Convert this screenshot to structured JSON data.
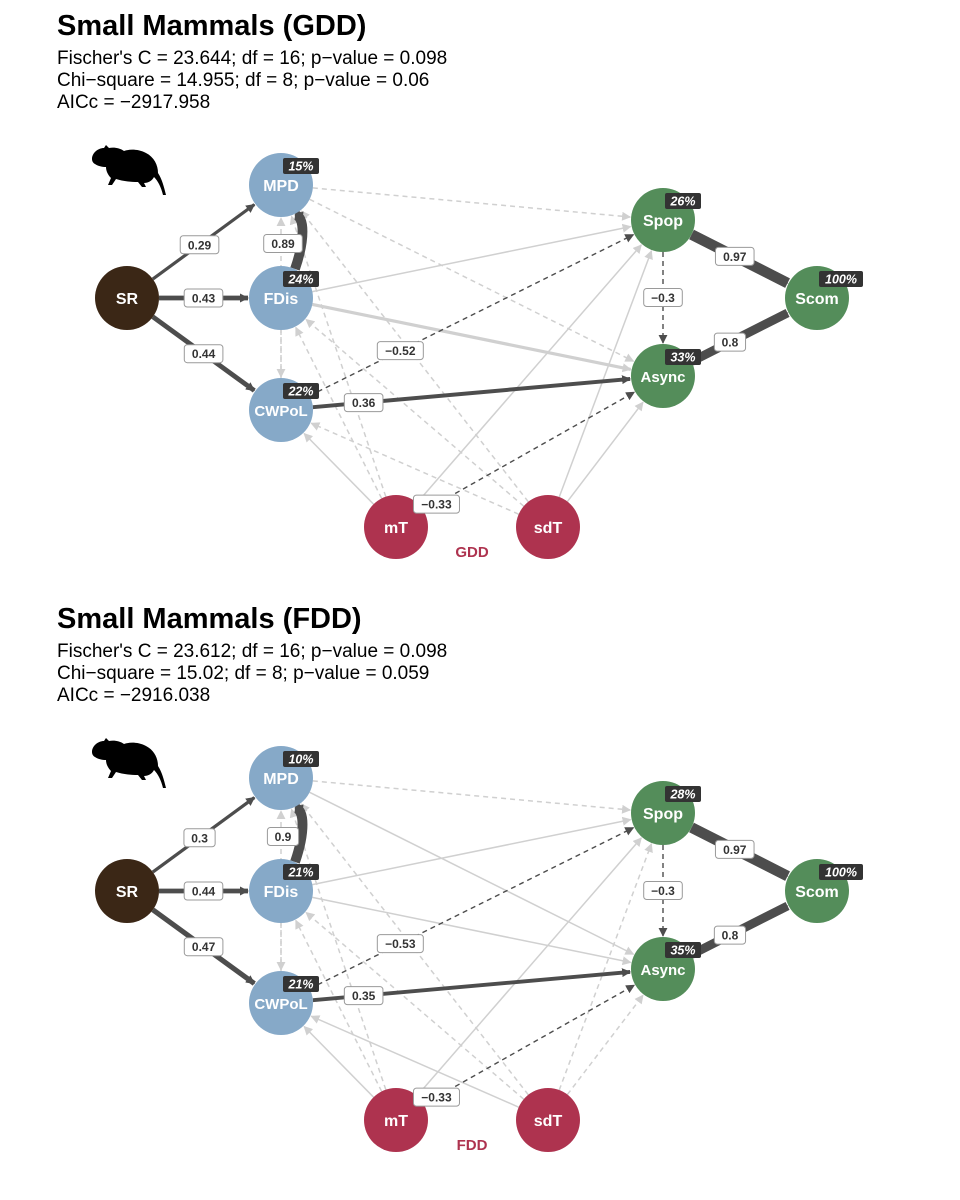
{
  "colors": {
    "predictor": "#3b2716",
    "mediator": "#86a9c8",
    "response": "#548d5a",
    "climate": "#ae334f",
    "strong_path": "#4d4d4d",
    "weak_path": "#d0d0d0"
  },
  "icon": "rat-silhouette-icon",
  "panels": [
    {
      "title": "Small Mammals (GDD)",
      "stats": [
        "Fischer's C = 23.644; df = 16; p−value = 0.098",
        "Chi−square = 14.955; df = 8; p−value = 0.06",
        "AICc = −2917.958"
      ],
      "climate_label": "GDD",
      "nodes": [
        {
          "id": "SR",
          "label": "SR",
          "group": "predictor"
        },
        {
          "id": "MPD",
          "label": "MPD",
          "group": "mediator",
          "r2": "15%"
        },
        {
          "id": "FDis",
          "label": "FDis",
          "group": "mediator",
          "r2": "24%"
        },
        {
          "id": "CWPoL",
          "label": "CWPoL",
          "group": "mediator",
          "r2": "22%"
        },
        {
          "id": "Spop",
          "label": "Spop",
          "group": "response",
          "r2": "26%"
        },
        {
          "id": "Async",
          "label": "Async",
          "group": "response",
          "r2": "33%"
        },
        {
          "id": "Scom",
          "label": "Scom",
          "group": "response",
          "r2": "100%"
        },
        {
          "id": "mT",
          "label": "mT",
          "group": "climate"
        },
        {
          "id": "sdT",
          "label": "sdT",
          "group": "climate"
        }
      ],
      "edges": [
        {
          "from": "SR",
          "to": "MPD",
          "coef": "0.29",
          "sig": true,
          "dashed": false
        },
        {
          "from": "SR",
          "to": "FDis",
          "coef": "0.43",
          "sig": true,
          "dashed": false
        },
        {
          "from": "SR",
          "to": "CWPoL",
          "coef": "0.44",
          "sig": true,
          "dashed": false
        },
        {
          "from": "FDis",
          "to": "MPD",
          "coef": "0.89",
          "sig": true,
          "dashed": false
        },
        {
          "from": "Spop",
          "to": "Scom",
          "coef": "0.97",
          "sig": true,
          "dashed": false
        },
        {
          "from": "Async",
          "to": "Scom",
          "coef": "0.8",
          "sig": true,
          "dashed": false
        },
        {
          "from": "Spop",
          "to": "Async",
          "coef": "−0.3",
          "sig": true,
          "dashed": true
        },
        {
          "from": "CWPoL",
          "to": "Async",
          "coef": "0.36",
          "sig": true,
          "dashed": false
        },
        {
          "from": "CWPoL",
          "to": "Spop",
          "coef": "−0.52",
          "sig": true,
          "dashed": true
        },
        {
          "from": "mT",
          "to": "Async",
          "coef": "−0.33",
          "sig": true,
          "dashed": true
        },
        {
          "from": "FDis",
          "to": "Async",
          "sig": false,
          "dashed": false,
          "thick": true
        },
        {
          "from": "FDis",
          "to": "Spop",
          "sig": false,
          "dashed": false
        },
        {
          "from": "MPD",
          "to": "Spop",
          "sig": false,
          "dashed": true
        },
        {
          "from": "MPD",
          "to": "Async",
          "sig": false,
          "dashed": true
        },
        {
          "from": "mT",
          "to": "Spop",
          "sig": false,
          "dashed": false
        },
        {
          "from": "sdT",
          "to": "Spop",
          "sig": false,
          "dashed": false
        },
        {
          "from": "sdT",
          "to": "Async",
          "sig": false,
          "dashed": false
        },
        {
          "from": "mT",
          "to": "CWPoL",
          "sig": false,
          "dashed": false
        },
        {
          "from": "mT",
          "to": "MPD",
          "sig": false,
          "dashed": true
        },
        {
          "from": "mT",
          "to": "FDis",
          "sig": false,
          "dashed": true
        },
        {
          "from": "sdT",
          "to": "MPD",
          "sig": false,
          "dashed": true
        },
        {
          "from": "sdT",
          "to": "FDis",
          "sig": false,
          "dashed": true
        },
        {
          "from": "sdT",
          "to": "CWPoL",
          "sig": false,
          "dashed": true
        },
        {
          "from": "CWPoL",
          "to": "MPD",
          "sig": false,
          "dashed": true
        },
        {
          "from": "FDis",
          "to": "CWPoL",
          "sig": false,
          "dashed": true
        }
      ]
    },
    {
      "title": "Small Mammals (FDD)",
      "stats": [
        "Fischer's C = 23.612; df = 16; p−value = 0.098",
        "Chi−square = 15.02; df = 8; p−value = 0.059",
        "AICc = −2916.038"
      ],
      "climate_label": "FDD",
      "nodes": [
        {
          "id": "SR",
          "label": "SR",
          "group": "predictor"
        },
        {
          "id": "MPD",
          "label": "MPD",
          "group": "mediator",
          "r2": "10%"
        },
        {
          "id": "FDis",
          "label": "FDis",
          "group": "mediator",
          "r2": "21%"
        },
        {
          "id": "CWPoL",
          "label": "CWPoL",
          "group": "mediator",
          "r2": "21%"
        },
        {
          "id": "Spop",
          "label": "Spop",
          "group": "response",
          "r2": "28%"
        },
        {
          "id": "Async",
          "label": "Async",
          "group": "response",
          "r2": "35%"
        },
        {
          "id": "Scom",
          "label": "Scom",
          "group": "response",
          "r2": "100%"
        },
        {
          "id": "mT",
          "label": "mT",
          "group": "climate"
        },
        {
          "id": "sdT",
          "label": "sdT",
          "group": "climate"
        }
      ],
      "edges": [
        {
          "from": "SR",
          "to": "MPD",
          "coef": "0.3",
          "sig": true,
          "dashed": false
        },
        {
          "from": "SR",
          "to": "FDis",
          "coef": "0.44",
          "sig": true,
          "dashed": false
        },
        {
          "from": "SR",
          "to": "CWPoL",
          "coef": "0.47",
          "sig": true,
          "dashed": false
        },
        {
          "from": "FDis",
          "to": "MPD",
          "coef": "0.9",
          "sig": true,
          "dashed": false
        },
        {
          "from": "Spop",
          "to": "Scom",
          "coef": "0.97",
          "sig": true,
          "dashed": false
        },
        {
          "from": "Async",
          "to": "Scom",
          "coef": "0.8",
          "sig": true,
          "dashed": false
        },
        {
          "from": "Spop",
          "to": "Async",
          "coef": "−0.3",
          "sig": true,
          "dashed": true
        },
        {
          "from": "CWPoL",
          "to": "Async",
          "coef": "0.35",
          "sig": true,
          "dashed": false
        },
        {
          "from": "CWPoL",
          "to": "Spop",
          "coef": "−0.53",
          "sig": true,
          "dashed": true
        },
        {
          "from": "mT",
          "to": "Async",
          "coef": "−0.33",
          "sig": true,
          "dashed": true
        },
        {
          "from": "FDis",
          "to": "Async",
          "sig": false,
          "dashed": false
        },
        {
          "from": "FDis",
          "to": "Spop",
          "sig": false,
          "dashed": false
        },
        {
          "from": "MPD",
          "to": "Spop",
          "sig": false,
          "dashed": true
        },
        {
          "from": "MPD",
          "to": "Async",
          "sig": false,
          "dashed": false
        },
        {
          "from": "mT",
          "to": "Spop",
          "sig": false,
          "dashed": false
        },
        {
          "from": "sdT",
          "to": "Spop",
          "sig": false,
          "dashed": true
        },
        {
          "from": "sdT",
          "to": "Async",
          "sig": false,
          "dashed": true
        },
        {
          "from": "mT",
          "to": "CWPoL",
          "sig": false,
          "dashed": false
        },
        {
          "from": "mT",
          "to": "MPD",
          "sig": false,
          "dashed": true
        },
        {
          "from": "mT",
          "to": "FDis",
          "sig": false,
          "dashed": true
        },
        {
          "from": "sdT",
          "to": "MPD",
          "sig": false,
          "dashed": true
        },
        {
          "from": "sdT",
          "to": "FDis",
          "sig": false,
          "dashed": true
        },
        {
          "from": "sdT",
          "to": "CWPoL",
          "sig": false,
          "dashed": false
        },
        {
          "from": "CWPoL",
          "to": "MPD",
          "sig": false,
          "dashed": true
        },
        {
          "from": "FDis",
          "to": "CWPoL",
          "sig": false,
          "dashed": true
        }
      ]
    }
  ]
}
